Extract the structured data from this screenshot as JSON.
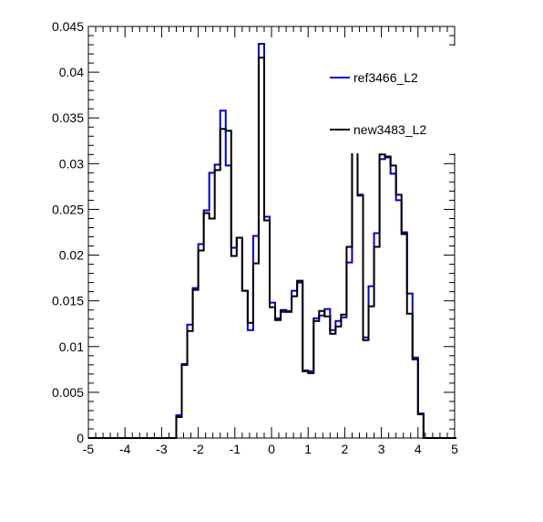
{
  "chart_data": {
    "type": "line",
    "style": "step-histogram",
    "title": "",
    "xlabel": "",
    "ylabel": "",
    "xlim": [
      -5,
      5
    ],
    "ylim": [
      0,
      0.045
    ],
    "xticks": [
      "-5",
      "-4",
      "-3",
      "-2",
      "-1",
      "0",
      "1",
      "2",
      "3",
      "4",
      "5"
    ],
    "yticks": [
      "0",
      "0.005",
      "0.01",
      "0.015",
      "0.02",
      "0.025",
      "0.03",
      "0.035",
      "0.04",
      "0.045"
    ],
    "grid": false,
    "legend_position": "top-right",
    "bin_width": 0.15,
    "bin_edges_start": -5,
    "series": [
      {
        "name": "ref3466_L2",
        "color": "#0000cc",
        "values": [
          0,
          0,
          0,
          0,
          0,
          0,
          0,
          0,
          0,
          0,
          0,
          0,
          0,
          0,
          0,
          0,
          0.0025,
          0.0081,
          0.0124,
          0.0164,
          0.0212,
          0.0249,
          0.029,
          0.0299,
          0.0358,
          0.0298,
          0.0208,
          0.0219,
          0.0161,
          0.0118,
          0.0221,
          0.0431,
          0.0242,
          0.0148,
          0.0131,
          0.0138,
          0.0139,
          0.0161,
          0.017,
          0.0074,
          0.0073,
          0.0131,
          0.0134,
          0.0141,
          0.0118,
          0.0128,
          0.0132,
          0.0192,
          0.0402,
          0.0265,
          0.011,
          0.0166,
          0.0224,
          0.0305,
          0.0308,
          0.0289,
          0.026,
          0.0225,
          0.0158,
          0.0088,
          0.0027,
          0,
          0,
          0,
          0,
          0,
          0,
          0
        ]
      },
      {
        "name": "new3483_L2",
        "color": "#000000",
        "values": [
          0,
          0,
          0,
          0,
          0,
          0,
          0,
          0,
          0,
          0,
          0,
          0,
          0,
          0,
          0,
          0,
          0.0023,
          0.008,
          0.0117,
          0.0162,
          0.0205,
          0.0246,
          0.024,
          0.0293,
          0.0338,
          0.0336,
          0.0199,
          0.0219,
          0.0161,
          0.0126,
          0.0191,
          0.0416,
          0.0238,
          0.0143,
          0.0129,
          0.014,
          0.0138,
          0.0155,
          0.0172,
          0.0073,
          0.0071,
          0.0128,
          0.0139,
          0.0133,
          0.0114,
          0.0122,
          0.0135,
          0.0209,
          0.0411,
          0.0266,
          0.0107,
          0.0144,
          0.0209,
          0.031,
          0.0307,
          0.0298,
          0.0266,
          0.0223,
          0.0136,
          0.0086,
          0.0026,
          0,
          0,
          0,
          0,
          0,
          0,
          0
        ]
      }
    ]
  }
}
